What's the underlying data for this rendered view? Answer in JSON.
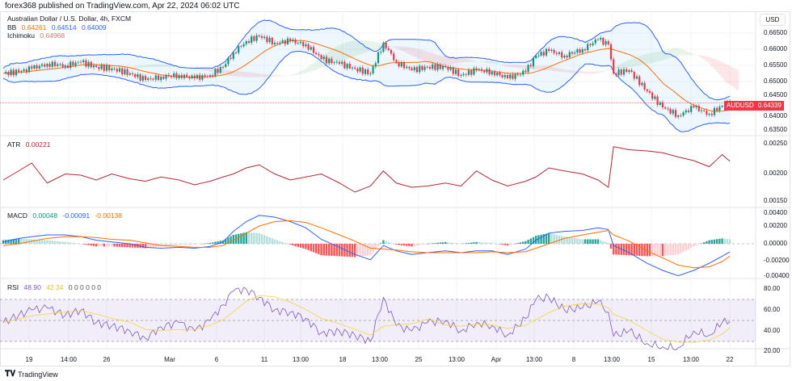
{
  "header": {
    "published": "forex368 published on TradingView.com, Apr 22, 2024 06:02 UTC"
  },
  "main_legend": {
    "title": "Australian Dollar / U.S. Dollar, 4h, FXCM",
    "bb_label": "BB",
    "bb_values": [
      "0.64261",
      "0.64514",
      "0.64009"
    ],
    "ichimoku_label": "Ichimoku",
    "ichimoku_value": "0.64968"
  },
  "atr_legend": {
    "label": "ATR",
    "value": "0.00221"
  },
  "macd_legend": {
    "label": "MACD",
    "values": [
      "0.00048",
      "-0.00091",
      "-0.00138"
    ]
  },
  "rsi_legend": {
    "label": "RSI",
    "values": [
      "48.90",
      "42.34"
    ],
    "extra": "0 0 0 0 0 0"
  },
  "currency_button": "USD",
  "price_tag": {
    "symbol": "AUDUSD",
    "price": "0.64339"
  },
  "footer": {
    "brand": "TradingView"
  },
  "colors": {
    "up": "#089981",
    "down": "#f23645",
    "bb": "#2962ff",
    "bb_basis": "#ff6d00",
    "atr": "#b22833",
    "macd": "#2962ff",
    "signal": "#ff6d00",
    "rsi": "#7e57c2",
    "rsi_ma": "#f5d33a"
  },
  "chart_data": [
    {
      "type": "candlestick",
      "title": "Australian Dollar / U.S. Dollar, 4h, FXCM",
      "y_ticks": [
        "0.66500",
        "0.66000",
        "0.65500",
        "0.65000",
        "0.64500",
        "0.64000",
        "0.63500"
      ],
      "ylim": [
        0.634,
        0.668
      ],
      "x_ticks": [
        "19",
        "14:00",
        "26",
        "Mar",
        "6",
        "11",
        "13:00",
        "18",
        "13:00",
        "25",
        "13:00",
        "Apr",
        "13:00",
        "8",
        "13:00",
        "15",
        "13:00",
        "22"
      ],
      "x": [
        "Feb 15 08:00",
        "Feb 16 08:00",
        "Feb 19 04:00",
        "Feb 20 04:00",
        "Feb 21 08:00",
        "Feb 22 08:00",
        "Feb 23 08:00",
        "Feb 26 08:00",
        "Feb 27 12:00",
        "Feb 28 12:00",
        "Feb 29 12:00",
        "Mar 1 16:00",
        "Mar 4 16:00",
        "Mar 5 16:00",
        "Mar 6 12:00",
        "Mar 7 04:00",
        "Mar 8 00:00",
        "Mar 8 20:00",
        "Mar 11 20:00",
        "Mar 12 20:00",
        "Mar 13 20:00",
        "Mar 14 20:00",
        "Mar 18 00:00",
        "Mar 19 00:00",
        "Mar 20 00:00",
        "Mar 20 20:00",
        "Mar 21 16:00",
        "Mar 22 16:00",
        "Mar 25 16:00",
        "Mar 26 20:00",
        "Mar 27 20:00",
        "Mar 28 20:00",
        "Mar 29 20:00",
        "Apr 1 20:00",
        "Apr 3 00:00",
        "Apr 3 16:00",
        "Apr 4 12:00",
        "Apr 5 12:00",
        "Apr 8 16:00",
        "Apr 9 16:00",
        "Apr 10 08:00",
        "Apr 10 16:00",
        "Apr 11 16:00",
        "Apr 12 20:00",
        "Apr 15 20:00",
        "Apr 16 20:00",
        "Apr 17 20:00",
        "Apr 18 20:00",
        "Apr 19 16:00",
        "Apr 22 04:00"
      ],
      "close": [
        0.6525,
        0.653,
        0.654,
        0.6555,
        0.655,
        0.656,
        0.6545,
        0.654,
        0.6525,
        0.6505,
        0.6515,
        0.652,
        0.651,
        0.652,
        0.6545,
        0.659,
        0.6625,
        0.664,
        0.662,
        0.6625,
        0.6615,
        0.657,
        0.6555,
        0.654,
        0.6525,
        0.662,
        0.656,
        0.6535,
        0.6545,
        0.6545,
        0.652,
        0.6535,
        0.653,
        0.651,
        0.653,
        0.658,
        0.6595,
        0.658,
        0.66,
        0.663,
        0.6615,
        0.6525,
        0.6535,
        0.647,
        0.642,
        0.6395,
        0.642,
        0.64,
        0.6425,
        0.6434
      ]
    },
    {
      "type": "line",
      "title": "ATR",
      "y_ticks": [
        "0.00250",
        "0.00200",
        "0.00150"
      ],
      "values": [
        0.0019,
        0.00205,
        0.00218,
        0.00185,
        0.002,
        0.00198,
        0.0019,
        0.002,
        0.00192,
        0.00188,
        0.00195,
        0.0019,
        0.00182,
        0.00188,
        0.00195,
        0.002,
        0.0021,
        0.00215,
        0.002,
        0.0019,
        0.00195,
        0.002,
        0.00185,
        0.0017,
        0.0018,
        0.00205,
        0.00185,
        0.00178,
        0.0018,
        0.00185,
        0.0018,
        0.00205,
        0.0019,
        0.0018,
        0.00188,
        0.00195,
        0.0021,
        0.00205,
        0.002,
        0.0019,
        0.00178,
        0.00245,
        0.0024,
        0.00238,
        0.00235,
        0.00228,
        0.00222,
        0.00212,
        0.00232,
        0.00221
      ]
    },
    {
      "type": "line+bar",
      "title": "MACD",
      "y_ticks": [
        "0.00400",
        "0.00200",
        "0.00000",
        "-0.00200",
        "-0.00400"
      ],
      "macd": [
        0.0002,
        0.0006,
        0.0008,
        0.001,
        0.001,
        0.0008,
        0.0004,
        0.0002,
        0.0,
        -0.0004,
        -0.0005,
        -0.0004,
        -0.0005,
        -0.0003,
        0.0002,
        0.0014,
        0.0025,
        0.0032,
        0.003,
        0.0025,
        0.0018,
        0.0005,
        -0.0004,
        -0.0012,
        -0.0018,
        -0.0002,
        -0.0008,
        -0.0012,
        -0.001,
        -0.0008,
        -0.001,
        -0.0008,
        -0.0008,
        -0.0012,
        -0.0006,
        0.0004,
        0.0012,
        0.0014,
        0.0015,
        0.0018,
        0.0016,
        -0.0002,
        -0.001,
        -0.0022,
        -0.003,
        -0.0036,
        -0.003,
        -0.0022,
        -0.0014,
        -0.0009
      ],
      "signal": [
        -0.0002,
        0.0,
        0.0003,
        0.0006,
        0.0008,
        0.0008,
        0.0007,
        0.0005,
        0.0004,
        0.0001,
        -0.0002,
        -0.0003,
        -0.0004,
        -0.0004,
        -0.0002,
        0.0004,
        0.0012,
        0.002,
        0.0025,
        0.0026,
        0.0024,
        0.0018,
        0.001,
        0.0003,
        -0.0005,
        -0.0006,
        -0.0007,
        -0.0009,
        -0.001,
        -0.001,
        -0.001,
        -0.001,
        -0.0009,
        -0.001,
        -0.0009,
        -0.0005,
        0.0,
        0.0006,
        0.001,
        0.0013,
        0.0015,
        0.001,
        0.0003,
        -0.0008,
        -0.0016,
        -0.0024,
        -0.0027,
        -0.0026,
        -0.002,
        -0.0014
      ]
    },
    {
      "type": "line",
      "title": "RSI",
      "y_ticks": [
        "80.00",
        "60.00",
        "40.00",
        "20.00"
      ],
      "band": [
        30,
        70
      ],
      "values": [
        48,
        55,
        60,
        62,
        55,
        60,
        48,
        45,
        40,
        33,
        44,
        48,
        40,
        50,
        65,
        78,
        80,
        72,
        60,
        58,
        52,
        38,
        40,
        36,
        30,
        72,
        45,
        40,
        48,
        50,
        40,
        48,
        45,
        36,
        52,
        70,
        72,
        60,
        62,
        68,
        58,
        35,
        40,
        28,
        25,
        24,
        40,
        36,
        48,
        49
      ]
    }
  ]
}
